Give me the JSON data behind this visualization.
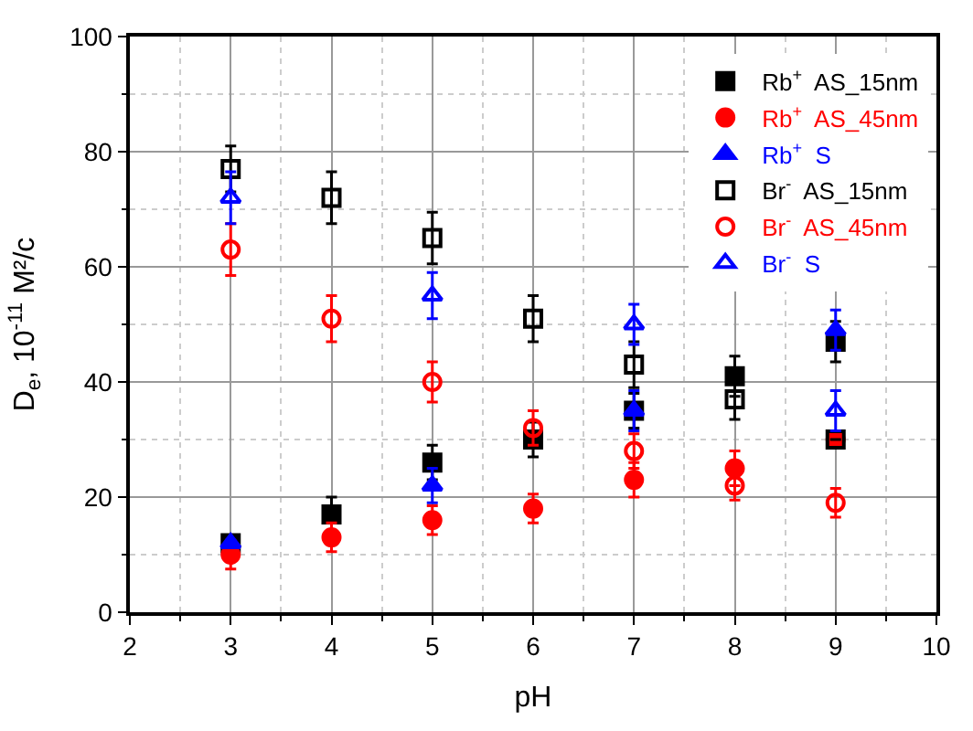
{
  "chart_data": {
    "type": "scatter",
    "xlabel": "pH",
    "ylabel": "D$_{e}$, 10$^{-11}$ M²/c",
    "x": [
      3,
      4,
      5,
      6,
      7,
      8,
      9
    ],
    "xlim": [
      2,
      10
    ],
    "xticks": [
      2,
      3,
      4,
      5,
      6,
      7,
      8,
      9,
      10
    ],
    "ylim": [
      0,
      100
    ],
    "yticks": [
      0,
      20,
      40,
      60,
      80,
      100
    ],
    "grid": true,
    "legend": "top right",
    "series": [
      {
        "name": "Rb$^{+}$  AS_15nm",
        "color": "#000000",
        "marker": "square",
        "values": [
          12,
          17,
          26,
          30,
          35,
          41,
          47
        ],
        "errors": [
          null,
          3,
          3,
          3,
          3,
          3.5,
          3.5
        ]
      },
      {
        "name": "Rb$^{+}$  AS_45nm",
        "color": "#ff0000",
        "marker": "circle",
        "values": [
          10,
          13,
          16,
          18,
          23,
          25,
          30
        ],
        "errors": [
          2.5,
          2.5,
          2.5,
          2.5,
          3,
          3,
          null
        ]
      },
      {
        "name": "Rb$^{+}$  S",
        "color": "#0000ff",
        "marker": "triangle",
        "values": [
          12,
          null,
          22,
          null,
          35,
          null,
          49
        ],
        "errors": [
          null,
          null,
          3,
          null,
          3.5,
          null,
          3.5
        ]
      },
      {
        "name": "Br$^{-}$  AS_15nm",
        "color": "#000000",
        "marker": "square-open",
        "values": [
          77,
          72,
          65,
          51,
          43,
          37,
          30
        ],
        "errors": [
          4,
          4.5,
          4.5,
          4,
          4,
          3.5,
          null
        ]
      },
      {
        "name": "Br$^{-}$  AS_45nm",
        "color": "#ff0000",
        "marker": "circle-open",
        "values": [
          63,
          51,
          40,
          32,
          28,
          22,
          19
        ],
        "errors": [
          4.5,
          4,
          3.5,
          3,
          3,
          2.5,
          2.5
        ]
      },
      {
        "name": "Br$^{-}$  S",
        "color": "#0000ff",
        "marker": "triangle-open",
        "values": [
          72,
          null,
          55,
          null,
          50,
          null,
          35
        ],
        "errors": [
          4.5,
          null,
          4,
          null,
          3.5,
          null,
          3.5
        ]
      }
    ]
  }
}
